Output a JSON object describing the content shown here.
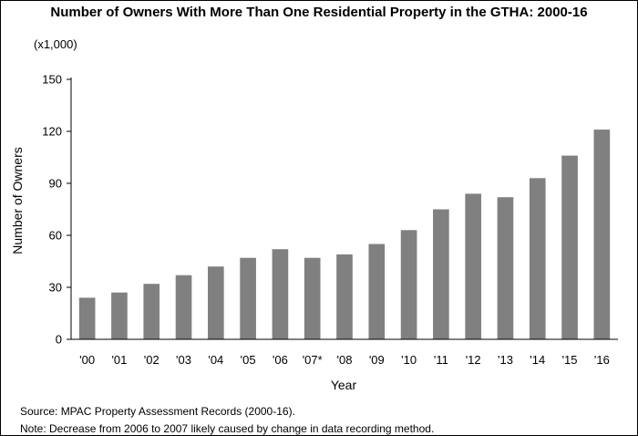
{
  "chart_data": {
    "type": "bar",
    "title": "Number of Owners With More Than One Residential Property in the GTHA: 2000-16",
    "unit_label": "(x1,000)",
    "xlabel": "Year",
    "ylabel": "Number of Owners",
    "categories": [
      "'00",
      "'01",
      "'02",
      "'03",
      "'04",
      "'05",
      "'06",
      "'07*",
      "'08",
      "'09",
      "'10",
      "'11",
      "'12",
      "'13",
      "'14",
      "'15",
      "'16"
    ],
    "values": [
      24,
      27,
      32,
      37,
      42,
      47,
      52,
      47,
      49,
      55,
      63,
      75,
      84,
      82,
      93,
      106,
      121
    ],
    "ylim": [
      0,
      150
    ],
    "yticks": [
      0,
      30,
      60,
      90,
      120,
      150
    ],
    "bar_color": "#808080",
    "grid": false,
    "legend": "none"
  },
  "notes": {
    "source": "Source: MPAC Property Assessment Records (2000-16).",
    "method": "Note: Decrease from 2006 to 2007 likely caused by change in data recording method."
  }
}
